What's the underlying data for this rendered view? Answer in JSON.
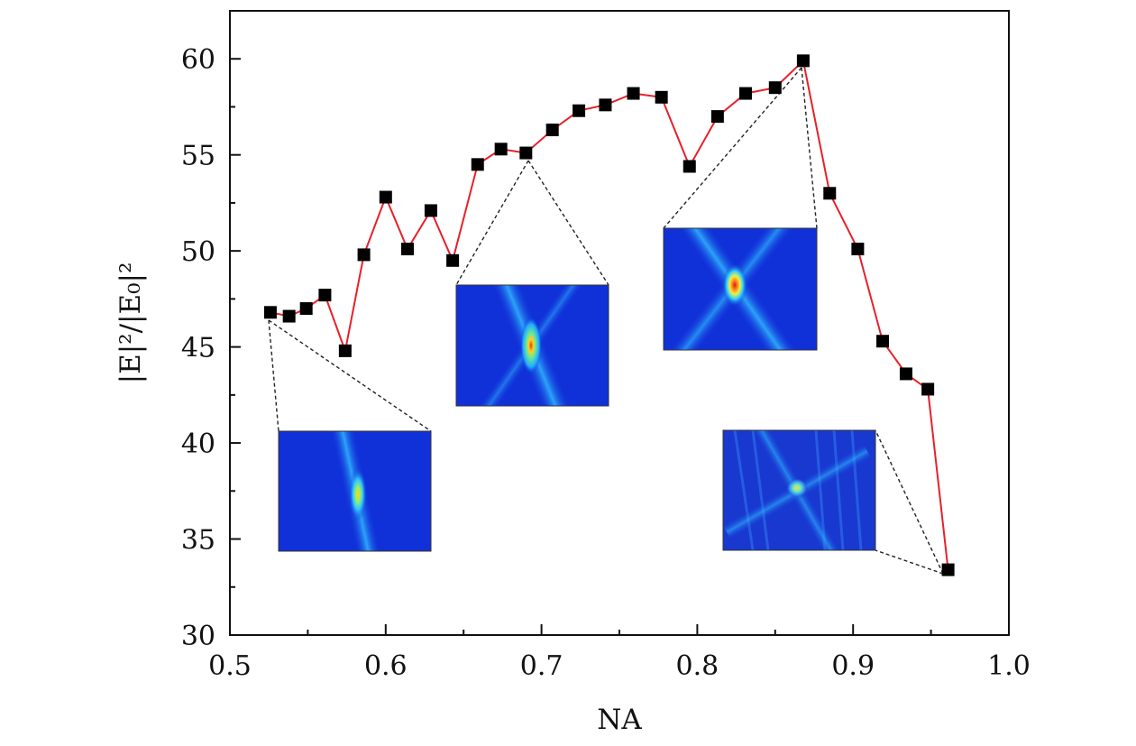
{
  "chart_data": {
    "type": "line",
    "title": "",
    "xlabel": "NA",
    "ylabel": "|E|²/|E₀|²",
    "xlim": [
      0.5,
      1.0
    ],
    "ylim": [
      30,
      62.5
    ],
    "x_ticks": [
      "0.5",
      "0.6",
      "0.7",
      "0.8",
      "0.9",
      "1.0"
    ],
    "y_ticks": [
      "30",
      "35",
      "40",
      "45",
      "50",
      "55",
      "60"
    ],
    "grid": false,
    "legend": "none",
    "series": [
      {
        "marker": "square",
        "marker_color": "#000000",
        "line_color": "#e8202a",
        "x": [
          0.526,
          0.538,
          0.549,
          0.561,
          0.574,
          0.586,
          0.6,
          0.614,
          0.629,
          0.643,
          0.659,
          0.674,
          0.69,
          0.707,
          0.724,
          0.741,
          0.759,
          0.777,
          0.795,
          0.813,
          0.831,
          0.85,
          0.868,
          0.885,
          0.903,
          0.919,
          0.934,
          0.948,
          0.961
        ],
        "y": [
          46.8,
          46.6,
          47.0,
          47.7,
          44.8,
          49.8,
          52.8,
          50.1,
          52.1,
          49.5,
          54.5,
          55.3,
          55.1,
          56.3,
          57.3,
          57.6,
          58.2,
          58.0,
          54.4,
          57.0,
          58.2,
          58.5,
          59.9,
          53.0,
          50.1,
          45.3,
          43.6,
          42.8,
          33.4
        ]
      }
    ],
    "insets": [
      {
        "name": "inset-na-0526",
        "point_x": 0.526,
        "point_y": 46.8,
        "spot_color": "#ffd020"
      },
      {
        "name": "inset-na-0690",
        "point_x": 0.69,
        "point_y": 55.1,
        "spot_color": "#e04010"
      },
      {
        "name": "inset-na-0868",
        "point_x": 0.868,
        "point_y": 59.9,
        "spot_color": "#e01810"
      },
      {
        "name": "inset-na-0961",
        "point_x": 0.961,
        "point_y": 33.4,
        "spot_color": "#f0e040"
      }
    ],
    "colors": {
      "field_background": "#1030d8",
      "field_ring": "#20b0ff"
    }
  }
}
